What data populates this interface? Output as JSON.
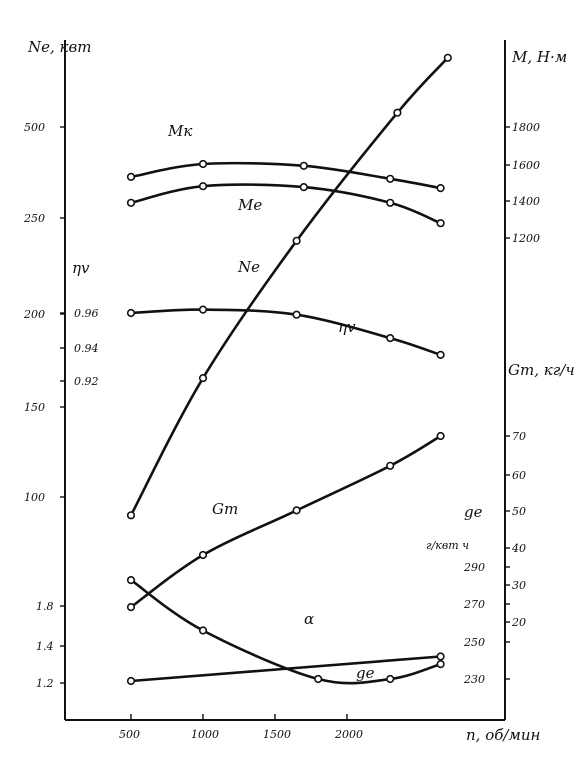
{
  "chart_data": {
    "type": "line",
    "x_axis": {
      "label": "n, об/мин",
      "ticks": [
        "500",
        "1000",
        "1500",
        "2000"
      ],
      "range": [
        500,
        2700
      ]
    },
    "axes": {
      "Ne_label": "Ne, квт",
      "Ne_ticks": [
        "500",
        "250",
        "200",
        "150",
        "100"
      ],
      "eta_label": "ηv",
      "eta_ticks": [
        "0.96",
        "0.94",
        "0.92"
      ],
      "alpha_ticks": [
        "1.8",
        "1.4",
        "1.2"
      ],
      "M_label": "M, Н·м",
      "M_ticks": [
        "1800",
        "1600",
        "1400",
        "1200"
      ],
      "G_label": "Gт, кг/ч",
      "G_ticks": [
        "70",
        "60",
        "50",
        "40",
        "30",
        "20"
      ],
      "ge_label": "ge",
      "ge_unit": "г/квт ч",
      "ge_ticks": [
        "290",
        "270",
        "250",
        "230"
      ]
    },
    "series": [
      {
        "name": "Mк",
        "values": [
          [
            500,
            1530
          ],
          [
            1000,
            1600
          ],
          [
            1700,
            1590
          ],
          [
            2300,
            1520
          ],
          [
            2650,
            1470
          ]
        ]
      },
      {
        "name": "Mе",
        "values": [
          [
            500,
            1390
          ],
          [
            1000,
            1480
          ],
          [
            1700,
            1475
          ],
          [
            2300,
            1390
          ],
          [
            2650,
            1280
          ]
        ]
      },
      {
        "name": "Nе",
        "values": [
          [
            500,
            90
          ],
          [
            1000,
            165
          ],
          [
            1650,
            240
          ],
          [
            2350,
            310
          ],
          [
            2700,
            340
          ]
        ]
      },
      {
        "name": "ηv",
        "values": [
          [
            500,
            0.96
          ],
          [
            1000,
            0.962
          ],
          [
            1650,
            0.959
          ],
          [
            2300,
            0.945
          ],
          [
            2650,
            0.935
          ]
        ]
      },
      {
        "name": "Gт",
        "values": [
          [
            500,
            24
          ],
          [
            1000,
            38
          ],
          [
            1650,
            50
          ],
          [
            2300,
            62
          ],
          [
            2650,
            70
          ]
        ]
      },
      {
        "name": "α",
        "values": [
          [
            500,
            1.2
          ],
          [
            2650,
            1.34
          ]
        ]
      },
      {
        "name": "gе",
        "values": [
          [
            500,
            283
          ],
          [
            1000,
            256
          ],
          [
            1800,
            230
          ],
          [
            2300,
            230
          ],
          [
            2650,
            238
          ]
        ]
      }
    ]
  }
}
